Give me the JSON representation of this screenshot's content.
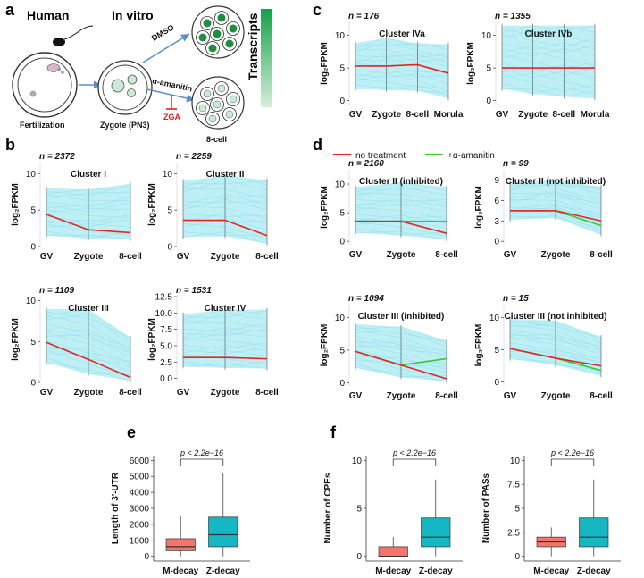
{
  "panel_labels": {
    "a": "a",
    "b": "b",
    "c": "c",
    "d": "d",
    "e": "e",
    "f": "f"
  },
  "panel_a": {
    "human_label": "Human",
    "in_vitro_label": "In vitro",
    "fertilization_label": "Fertilization",
    "zygote_label": "Zygote (PN3)",
    "dmso_label": "DMSO",
    "amanitin_label": "α-amanitin",
    "zga_label": "ZGA",
    "eight_cell_label": "8-cell",
    "transcripts_label": "Transcripts",
    "colors": {
      "accent": "#2fb35b",
      "zga": "#e02020",
      "arrow": "#5a8fc8"
    }
  },
  "log2fpkm_label": "log₂FPKM",
  "panel_b": {
    "x_ticks": [
      "GV",
      "Zygote",
      "8-cell"
    ],
    "clusters": [
      {
        "n_label": "n = 2372",
        "title": "Cluster I",
        "y_ticks": [
          "0",
          "5",
          "10"
        ],
        "ylim": [
          0,
          11.5
        ],
        "mean": [
          4.4,
          2.3,
          1.9
        ],
        "low": [
          1.5,
          1.1,
          1.0
        ],
        "high": [
          8.0,
          7.8,
          8.6
        ]
      },
      {
        "n_label": "n = 2259",
        "title": "Cluster II",
        "y_ticks": [
          "0",
          "5",
          "10"
        ],
        "ylim": [
          0,
          11.5
        ],
        "mean": [
          3.6,
          3.6,
          1.5
        ],
        "low": [
          1.3,
          1.4,
          0.4
        ],
        "high": [
          9.0,
          9.7,
          9.1
        ]
      },
      {
        "n_label": "n = 1109",
        "title": "Cluster III",
        "y_ticks": [
          "0",
          "5",
          "10"
        ],
        "ylim": [
          0,
          10.5
        ],
        "mean": [
          4.9,
          2.8,
          0.6
        ],
        "low": [
          2.4,
          1.0,
          0.2
        ],
        "high": [
          9.0,
          8.9,
          5.5
        ]
      },
      {
        "n_label": "n = 1531",
        "title": "Cluster IV",
        "y_ticks": [
          "0.0",
          "2.5",
          "5.0",
          "7.5",
          "10.0",
          "12.5"
        ],
        "ylim": [
          -0.6,
          12.5
        ],
        "mean": [
          3.2,
          3.2,
          3.0
        ],
        "low": [
          1.8,
          1.6,
          1.5
        ],
        "high": [
          9.8,
          10.5,
          10.5
        ]
      }
    ]
  },
  "panel_c": {
    "x_ticks": [
      "GV",
      "Zygote",
      "8-cell",
      "Morula"
    ],
    "clusters": [
      {
        "n_label": "n = 176",
        "title": "Cluster IVa",
        "y_ticks": [
          "0",
          "5",
          "10"
        ],
        "ylim": [
          -0.6,
          12
        ],
        "mean": [
          5.3,
          5.3,
          5.5,
          4.2
        ],
        "low": [
          1.8,
          1.6,
          1.5,
          0.3
        ],
        "high": [
          8.8,
          9.6,
          8.8,
          8.6
        ]
      },
      {
        "n_label": "n = 1355",
        "title": "Cluster IVb",
        "y_ticks": [
          "0",
          "5",
          "10"
        ],
        "ylim": [
          -0.6,
          12
        ],
        "mean": [
          5.0,
          5.0,
          5.0,
          5.0
        ],
        "low": [
          1.8,
          1.0,
          0.6,
          0.3
        ],
        "high": [
          11.5,
          11.5,
          11.5,
          11.5
        ]
      }
    ]
  },
  "panel_d": {
    "legend": {
      "no_treatment": "no treatment",
      "amanitin": "+α-amanitin"
    },
    "x_ticks": [
      "GV",
      "Zygote",
      "8-cell"
    ],
    "clusters": [
      {
        "n_label": "n = 2160",
        "title": "Cluster II (inhibited)",
        "y_ticks": [
          "0",
          "5",
          "10"
        ],
        "ylim": [
          -0.6,
          12.5
        ],
        "mean": [
          3.5,
          3.5,
          1.4
        ],
        "amanitin": [
          3.5,
          3.5,
          3.5
        ],
        "low": [
          1.5,
          1.0,
          0.3
        ],
        "high": [
          9.5,
          10.3,
          9.5
        ]
      },
      {
        "n_label": "n = 99",
        "title": "Cluster II (not inhibited)",
        "y_ticks": [
          "0",
          "3",
          "6",
          "9"
        ],
        "ylim": [
          -0.5,
          10.5
        ],
        "mean": [
          4.5,
          4.5,
          3.0
        ],
        "amanitin": [
          4.5,
          4.5,
          2.3
        ],
        "low": [
          3.2,
          3.4,
          1.0
        ],
        "high": [
          8.5,
          9.0,
          8.0
        ]
      },
      {
        "n_label": "n = 1094",
        "title": "Cluster III (inhibited)",
        "y_ticks": [
          "0",
          "5",
          "10"
        ],
        "ylim": [
          -0.5,
          12.0
        ],
        "mean": [
          4.8,
          2.7,
          0.6
        ],
        "amanitin": [
          4.8,
          2.7,
          3.7
        ],
        "low": [
          2.3,
          0.8,
          0.2
        ],
        "high": [
          9.0,
          8.6,
          6.5
        ]
      },
      {
        "n_label": "n = 15",
        "title": "Cluster III (not inhibited)",
        "y_ticks": [
          "0",
          "5",
          "10"
        ],
        "ylim": [
          -0.6,
          12.0
        ],
        "mean": [
          5.2,
          3.7,
          2.5
        ],
        "amanitin": [
          5.2,
          3.7,
          1.8
        ],
        "low": [
          3.6,
          2.6,
          1.0
        ],
        "high": [
          9.8,
          9.5,
          7.0
        ]
      }
    ]
  },
  "panel_e": {
    "ylabel": "Length of 3′-UTR",
    "y_ticks": [
      "0",
      "1000",
      "2000",
      "3000",
      "4000",
      "5000",
      "6000"
    ],
    "ylim": [
      -300,
      6300
    ],
    "categories": [
      "M-decay",
      "Z-decay"
    ],
    "p_label": "p < 2.2e−16",
    "boxes": [
      {
        "min": 0,
        "q1": 350,
        "median": 600,
        "q3": 1100,
        "max": 2500,
        "color": "#f2766d"
      },
      {
        "min": 0,
        "q1": 600,
        "median": 1350,
        "q3": 2450,
        "max": 5200,
        "color": "#16b7c4"
      }
    ]
  },
  "panel_f": [
    {
      "ylabel": "Number of CPEs",
      "y_ticks": [
        "0",
        "5",
        "10"
      ],
      "ylim": [
        -0.5,
        10.5
      ],
      "categories": [
        "M-decay",
        "Z-decay"
      ],
      "p_label": "p < 2.2e−16",
      "boxes": [
        {
          "min": 0,
          "q1": 0,
          "median": 0,
          "q3": 1,
          "max": 2,
          "color": "#f2766d"
        },
        {
          "min": 0,
          "q1": 1,
          "median": 2,
          "q3": 4,
          "max": 8,
          "color": "#16b7c4"
        }
      ]
    },
    {
      "ylabel": "Number of PASs",
      "y_ticks": [
        "0",
        "2.5",
        "5",
        "7.5",
        "10"
      ],
      "ylim": [
        -0.5,
        10.5
      ],
      "categories": [
        "M-decay",
        "Z-decay"
      ],
      "p_label": "p < 2.2e−16",
      "boxes": [
        {
          "min": 0,
          "q1": 1,
          "median": 1.5,
          "q3": 2,
          "max": 3,
          "color": "#f2766d"
        },
        {
          "min": 0,
          "q1": 1,
          "median": 2,
          "q3": 4,
          "max": 8,
          "color": "#16b7c4"
        }
      ]
    }
  ],
  "colors": {
    "band": "#bdeff5",
    "band_line": "#7dd6e6",
    "mean": "#e52421",
    "amanitin": "#33cc33"
  }
}
